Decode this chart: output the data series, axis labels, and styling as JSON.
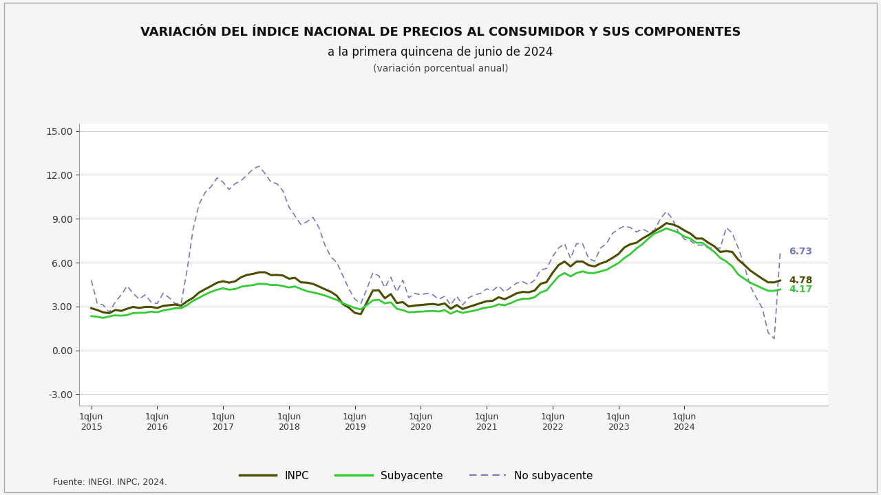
{
  "title_line1": "VARIACIÓN DEL ÍNDICE NACIONAL DE PRECIOS AL CONSUMIDOR Y SUS COMPONENTES",
  "title_line2": "a la primera quincena de junio de 2024",
  "title_line3": "(variación porcentual anual)",
  "xlabel_ticks": [
    "1qJun\n2015",
    "1qJun\n2016",
    "1qJun\n2017",
    "1qJun\n2018",
    "1qJun\n2019",
    "1qJun\n2020",
    "1qJun\n2021",
    "1qJun\n2022",
    "1qJun\n2023",
    "1qJun\n2024"
  ],
  "ylim": [
    -3.8,
    15.5
  ],
  "yticks": [
    -3.0,
    0.0,
    3.0,
    6.0,
    9.0,
    12.0,
    15.0
  ],
  "footer": "Fuente: INEGI. INPC, 2024.",
  "end_labels": {
    "no_sub": "6.73",
    "inpc": "4.78",
    "sub": "4.17"
  },
  "color_inpc": "#4d4d00",
  "color_sub": "#33cc33",
  "color_nosub": "#7777bb",
  "bg_color": "#f5f5f5",
  "plot_bg": "#ffffff",
  "INPC": [
    2.88,
    2.76,
    2.6,
    2.54,
    2.76,
    2.7,
    2.85,
    2.97,
    2.9,
    2.97,
    2.97,
    2.9,
    3.04,
    3.09,
    3.13,
    3.06,
    3.36,
    3.6,
    3.96,
    4.18,
    4.4,
    4.63,
    4.73,
    4.63,
    4.72,
    5.0,
    5.16,
    5.23,
    5.34,
    5.34,
    5.15,
    5.16,
    5.12,
    4.9,
    4.96,
    4.65,
    4.63,
    4.55,
    4.37,
    4.18,
    4.0,
    3.73,
    3.16,
    2.92,
    2.56,
    2.48,
    3.29,
    4.09,
    4.11,
    3.56,
    3.85,
    3.24,
    3.3,
    3.0,
    3.07,
    3.1,
    3.14,
    3.17,
    3.11,
    3.21,
    2.84,
    3.1,
    2.83,
    2.97,
    3.1,
    3.24,
    3.36,
    3.39,
    3.63,
    3.5,
    3.69,
    3.9,
    4.0,
    3.97,
    4.09,
    4.55,
    4.67,
    5.3,
    5.83,
    6.08,
    5.74,
    6.08,
    6.08,
    5.83,
    5.74,
    5.94,
    6.08,
    6.32,
    6.59,
    7.04,
    7.26,
    7.36,
    7.65,
    7.88,
    8.15,
    8.41,
    8.7,
    8.62,
    8.46,
    8.2,
    7.99,
    7.65,
    7.65,
    7.36,
    7.12,
    6.73,
    6.79,
    6.73,
    6.2,
    5.85,
    5.46,
    5.18,
    4.9,
    4.65,
    4.65,
    4.78
  ],
  "SUB": [
    2.34,
    2.3,
    2.22,
    2.32,
    2.4,
    2.37,
    2.42,
    2.55,
    2.57,
    2.57,
    2.65,
    2.6,
    2.73,
    2.8,
    2.88,
    2.88,
    3.1,
    3.39,
    3.6,
    3.82,
    4.0,
    4.15,
    4.25,
    4.15,
    4.19,
    4.35,
    4.42,
    4.46,
    4.56,
    4.55,
    4.47,
    4.47,
    4.4,
    4.3,
    4.37,
    4.2,
    4.05,
    3.96,
    3.87,
    3.75,
    3.6,
    3.45,
    3.22,
    3.06,
    2.9,
    2.8,
    3.1,
    3.42,
    3.46,
    3.21,
    3.29,
    2.85,
    2.75,
    2.6,
    2.63,
    2.65,
    2.68,
    2.7,
    2.66,
    2.75,
    2.51,
    2.7,
    2.56,
    2.65,
    2.72,
    2.84,
    2.93,
    2.99,
    3.15,
    3.08,
    3.23,
    3.41,
    3.53,
    3.53,
    3.63,
    3.96,
    4.1,
    4.59,
    5.06,
    5.29,
    5.06,
    5.29,
    5.4,
    5.29,
    5.29,
    5.4,
    5.51,
    5.74,
    5.97,
    6.32,
    6.59,
    6.97,
    7.26,
    7.65,
    7.99,
    8.15,
    8.34,
    8.2,
    8.05,
    7.78,
    7.65,
    7.36,
    7.36,
    7.04,
    6.73,
    6.32,
    6.08,
    5.74,
    5.18,
    4.9,
    4.63,
    4.44,
    4.25,
    4.07,
    4.07,
    4.17
  ],
  "NOSUB": [
    4.8,
    3.2,
    3.1,
    2.6,
    3.3,
    3.8,
    4.4,
    3.9,
    3.5,
    3.8,
    3.3,
    3.2,
    3.9,
    3.6,
    3.2,
    3.2,
    5.5,
    8.3,
    10.0,
    10.8,
    11.2,
    11.8,
    11.5,
    11.0,
    11.4,
    11.6,
    12.0,
    12.4,
    12.6,
    12.1,
    11.5,
    11.4,
    10.9,
    9.8,
    9.2,
    8.6,
    8.8,
    9.1,
    8.4,
    7.2,
    6.4,
    6.0,
    5.1,
    4.2,
    3.5,
    3.2,
    4.2,
    5.3,
    5.1,
    4.3,
    5.0,
    4.0,
    4.8,
    3.6,
    3.9,
    3.8,
    3.9,
    3.8,
    3.5,
    3.7,
    3.1,
    3.7,
    3.1,
    3.6,
    3.8,
    3.9,
    4.2,
    4.1,
    4.4,
    4.0,
    4.3,
    4.6,
    4.7,
    4.5,
    4.8,
    5.5,
    5.6,
    6.4,
    7.0,
    7.3,
    6.3,
    7.3,
    7.3,
    6.3,
    6.1,
    7.0,
    7.3,
    8.0,
    8.3,
    8.5,
    8.4,
    8.1,
    8.3,
    8.1,
    8.2,
    9.0,
    9.5,
    9.0,
    8.1,
    7.6,
    7.5,
    7.2,
    7.2,
    7.0,
    7.0,
    7.0,
    8.4,
    8.0,
    7.0,
    5.8,
    4.4,
    3.6,
    2.9,
    1.2,
    0.8,
    6.73
  ]
}
